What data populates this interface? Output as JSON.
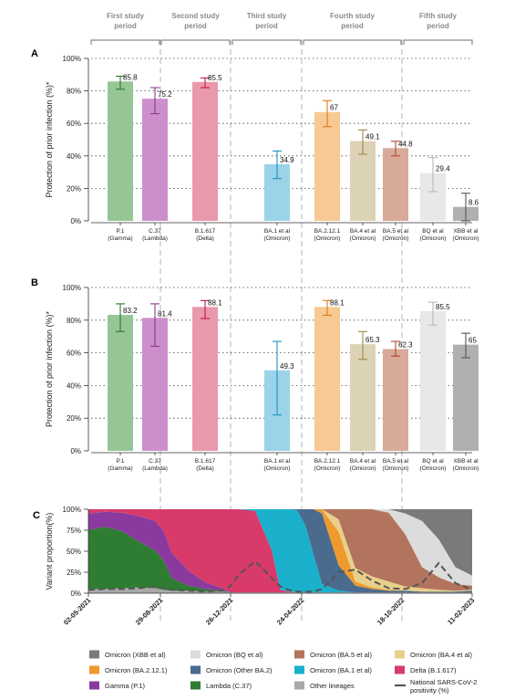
{
  "periods": [
    {
      "label_lines": [
        "First study",
        "period"
      ]
    },
    {
      "label_lines": [
        "Second study",
        "period"
      ]
    },
    {
      "label_lines": [
        "Third study",
        "period"
      ]
    },
    {
      "label_lines": [
        "Fourth study",
        "period"
      ]
    },
    {
      "label_lines": [
        "Fifth study",
        "period"
      ]
    }
  ],
  "colors": {
    "gamma": "#96c596",
    "lambda": "#cc8fcc",
    "delta": "#e999ac",
    "ba1": "#9bd4e9",
    "ba2121": "#f7c994",
    "ba4": "#dcd2b5",
    "ba5": "#d7aa9a",
    "bq": "#e8e8e8",
    "xbb": "#b0b0b0",
    "err_gamma": "#2b7a2b",
    "err_lambda": "#8b3a8b",
    "err_delta": "#c2163e",
    "err_ba1": "#1f8fc2",
    "err_ba2121": "#e07b10",
    "err_ba4": "#9a8a4a",
    "err_ba5": "#b04a2a",
    "err_bq": "#b8b8b8",
    "err_xbb": "#555555",
    "area_xbb": "#7a7a7a",
    "area_bq": "#dcdcdc",
    "area_ba5": "#b2745c",
    "area_ba4": "#e8d08a",
    "area_ba2121": "#ee9a2e",
    "area_otherba2": "#4a6a8e",
    "area_ba1": "#1ab0cc",
    "area_delta": "#d83a6a",
    "area_gamma": "#8a3a9e",
    "area_lambda": "#2e7d32",
    "area_other": "#a8a8a8",
    "positivity": "#555555"
  },
  "chart_data": [
    {
      "panel": "A",
      "type": "bar",
      "ylabel": "Protection of prior infection (%)*",
      "ylim": [
        0,
        100
      ],
      "yticks": [
        "0%",
        "20%",
        "40%",
        "60%",
        "80%",
        "100%"
      ],
      "categories": [
        [
          "P.1",
          "(Gamma)"
        ],
        [
          "C.37",
          "(Lambda)"
        ],
        [
          "B.1.617",
          "(Delta)"
        ],
        [
          "BA.1 et al",
          "(Omicron)"
        ],
        [
          "BA.2.12.1",
          "(Omicron)"
        ],
        [
          "BA.4 et al",
          "(Omicron)"
        ],
        [
          "BA.5 et al",
          "(Omicron)"
        ],
        [
          "BQ et al",
          "(Omicron)"
        ],
        [
          "XBB et al",
          "(Omicron)"
        ]
      ],
      "values": [
        85.8,
        75.2,
        85.5,
        34.9,
        67,
        49.1,
        44.8,
        29.4,
        8.6
      ],
      "value_labels": [
        "85.8",
        "75.2",
        "85.5",
        "34.9",
        "67",
        "49.1",
        "44.8",
        "29.4",
        "8.6"
      ],
      "ci_low": [
        81,
        66,
        82,
        26,
        58,
        41,
        40,
        18,
        0
      ],
      "ci_high": [
        89,
        82,
        88,
        43,
        74,
        56,
        49,
        39,
        17
      ]
    },
    {
      "panel": "B",
      "type": "bar",
      "ylabel": "Protection of prior infection (%)*",
      "ylim": [
        0,
        100
      ],
      "yticks": [
        "0%",
        "20%",
        "40%",
        "60%",
        "80%",
        "100%"
      ],
      "categories": [
        [
          "P.1",
          "(Gamma)"
        ],
        [
          "C.37",
          "(Lambda)"
        ],
        [
          "B.1.617",
          "(Delta)"
        ],
        [
          "BA.1 et al",
          "(Omicron)"
        ],
        [
          "BA.2.12.1",
          "(Omicron)"
        ],
        [
          "BA.4 et al",
          "(Omicron)"
        ],
        [
          "BA.5 et al",
          "(Omicron)"
        ],
        [
          "BQ et al",
          "(Omicron)"
        ],
        [
          "XBB et al",
          "(Omicron)"
        ]
      ],
      "values": [
        83.2,
        81.4,
        88.1,
        49.3,
        88.1,
        65.3,
        62.3,
        85.5,
        65
      ],
      "value_labels": [
        "83.2",
        "81.4",
        "88.1",
        "49.3",
        "88.1",
        "65.3",
        "62.3",
        "85.5",
        "65"
      ],
      "ci_low": [
        73,
        64,
        81,
        22,
        83,
        56,
        58,
        77,
        57
      ],
      "ci_high": [
        90,
        90,
        92,
        67,
        92,
        73,
        67,
        91,
        72
      ]
    },
    {
      "panel": "C",
      "type": "area",
      "ylabel": "Variant proportion(%)",
      "ylim": [
        0,
        100
      ],
      "yticks": [
        "0%",
        "25%",
        "50%",
        "75%",
        "100%"
      ],
      "x_tick_labels": [
        "02-05-2021",
        "29-08-2021",
        "26-12-2021",
        "24-04-2022",
        "18-10-2022",
        "11-02-2023"
      ],
      "x_weeks": [
        0,
        4,
        8,
        12,
        16,
        18,
        20,
        24,
        28,
        32,
        34,
        36,
        40,
        44,
        46,
        48,
        50,
        52,
        54,
        56,
        60,
        64,
        68,
        72,
        76,
        80,
        84,
        88,
        92
      ],
      "series": [
        {
          "key": "other",
          "values": [
            5,
            5,
            6,
            7,
            6,
            4,
            3,
            3,
            2,
            2,
            1,
            1,
            1,
            1,
            1,
            1,
            1,
            1,
            1,
            1,
            1,
            1,
            1,
            1,
            1,
            1,
            1,
            1,
            1
          ]
        },
        {
          "key": "lambda",
          "values": [
            70,
            74,
            68,
            55,
            45,
            35,
            15,
            6,
            3,
            1,
            0,
            0,
            0,
            0,
            0,
            0,
            0,
            0,
            0,
            0,
            0,
            0,
            0,
            0,
            0,
            0,
            0,
            0,
            0
          ]
        },
        {
          "key": "gamma",
          "values": [
            20,
            18,
            22,
            30,
            35,
            35,
            30,
            18,
            8,
            3,
            0,
            0,
            0,
            0,
            0,
            0,
            0,
            0,
            0,
            0,
            0,
            0,
            0,
            0,
            0,
            0,
            0,
            0,
            0
          ]
        },
        {
          "key": "delta",
          "values": [
            5,
            3,
            4,
            8,
            14,
            26,
            52,
            73,
            87,
            94,
            99,
            99,
            97,
            50,
            3,
            1,
            0,
            0,
            0,
            0,
            0,
            0,
            0,
            0,
            0,
            0,
            0,
            0,
            0
          ]
        },
        {
          "key": "ba1",
          "values": [
            0,
            0,
            0,
            0,
            0,
            0,
            0,
            0,
            0,
            0,
            0,
            0,
            2,
            49,
            96,
            98,
            98,
            80,
            45,
            10,
            2,
            0,
            0,
            0,
            0,
            0,
            0,
            0,
            0
          ]
        },
        {
          "key": "otherba2",
          "values": [
            0,
            0,
            0,
            0,
            0,
            0,
            0,
            0,
            0,
            0,
            0,
            0,
            0,
            0,
            0,
            0,
            1,
            19,
            54,
            84,
            30,
            8,
            4,
            2,
            2,
            1,
            1,
            1,
            2
          ]
        },
        {
          "key": "ba2121",
          "values": [
            0,
            0,
            0,
            0,
            0,
            0,
            0,
            0,
            0,
            0,
            0,
            0,
            0,
            0,
            0,
            0,
            0,
            0,
            0,
            5,
            40,
            5,
            2,
            1,
            0,
            0,
            0,
            0,
            0
          ]
        },
        {
          "key": "ba4",
          "values": [
            0,
            0,
            0,
            0,
            0,
            0,
            0,
            0,
            0,
            0,
            0,
            0,
            0,
            0,
            0,
            0,
            0,
            0,
            0,
            0,
            15,
            16,
            13,
            10,
            5,
            4,
            2,
            1,
            1
          ]
        },
        {
          "key": "ba5",
          "values": [
            0,
            0,
            0,
            0,
            0,
            0,
            0,
            0,
            0,
            0,
            0,
            0,
            0,
            0,
            0,
            0,
            0,
            0,
            0,
            0,
            12,
            70,
            80,
            82,
            62,
            25,
            15,
            8,
            5
          ]
        },
        {
          "key": "bq",
          "values": [
            0,
            0,
            0,
            0,
            0,
            0,
            0,
            0,
            0,
            0,
            0,
            0,
            0,
            0,
            0,
            0,
            0,
            0,
            0,
            0,
            0,
            0,
            0,
            4,
            25,
            55,
            45,
            20,
            12
          ]
        },
        {
          "key": "xbb",
          "values": [
            0,
            0,
            0,
            0,
            0,
            0,
            0,
            0,
            0,
            0,
            0,
            0,
            0,
            0,
            0,
            0,
            0,
            0,
            0,
            0,
            0,
            0,
            0,
            0,
            5,
            14,
            36,
            69,
            79
          ]
        }
      ],
      "positivity": [
        4,
        5,
        5,
        6,
        8,
        6,
        4,
        3,
        2,
        3,
        8,
        22,
        38,
        18,
        8,
        4,
        2,
        2,
        2,
        5,
        25,
        28,
        15,
        6,
        5,
        12,
        36,
        12,
        4
      ],
      "legend": [
        {
          "key": "xbb",
          "label": "Omicron (XBB et al)"
        },
        {
          "key": "bq",
          "label": "Omicron (BQ et al)"
        },
        {
          "key": "ba5",
          "label": "Omicron (BA.5 et al)"
        },
        {
          "key": "ba4",
          "label": "Omicron (BA.4 et al)"
        },
        {
          "key": "ba2121",
          "label": "Omicron (BA.2.12.1)"
        },
        {
          "key": "otherba2",
          "label": "Omicron (Other BA.2)"
        },
        {
          "key": "ba1",
          "label": "Omicron (BA.1 et al)"
        },
        {
          "key": "delta",
          "label": "Delta (B.1.617)"
        },
        {
          "key": "gamma",
          "label": "Gamma (P.1)"
        },
        {
          "key": "lambda",
          "label": "Lambda (C.37)"
        },
        {
          "key": "other",
          "label": "Other lineages"
        },
        {
          "key": "positivity",
          "label_lines": [
            "National SARS-CoV-2",
            "positivity (%)"
          ]
        }
      ]
    }
  ]
}
